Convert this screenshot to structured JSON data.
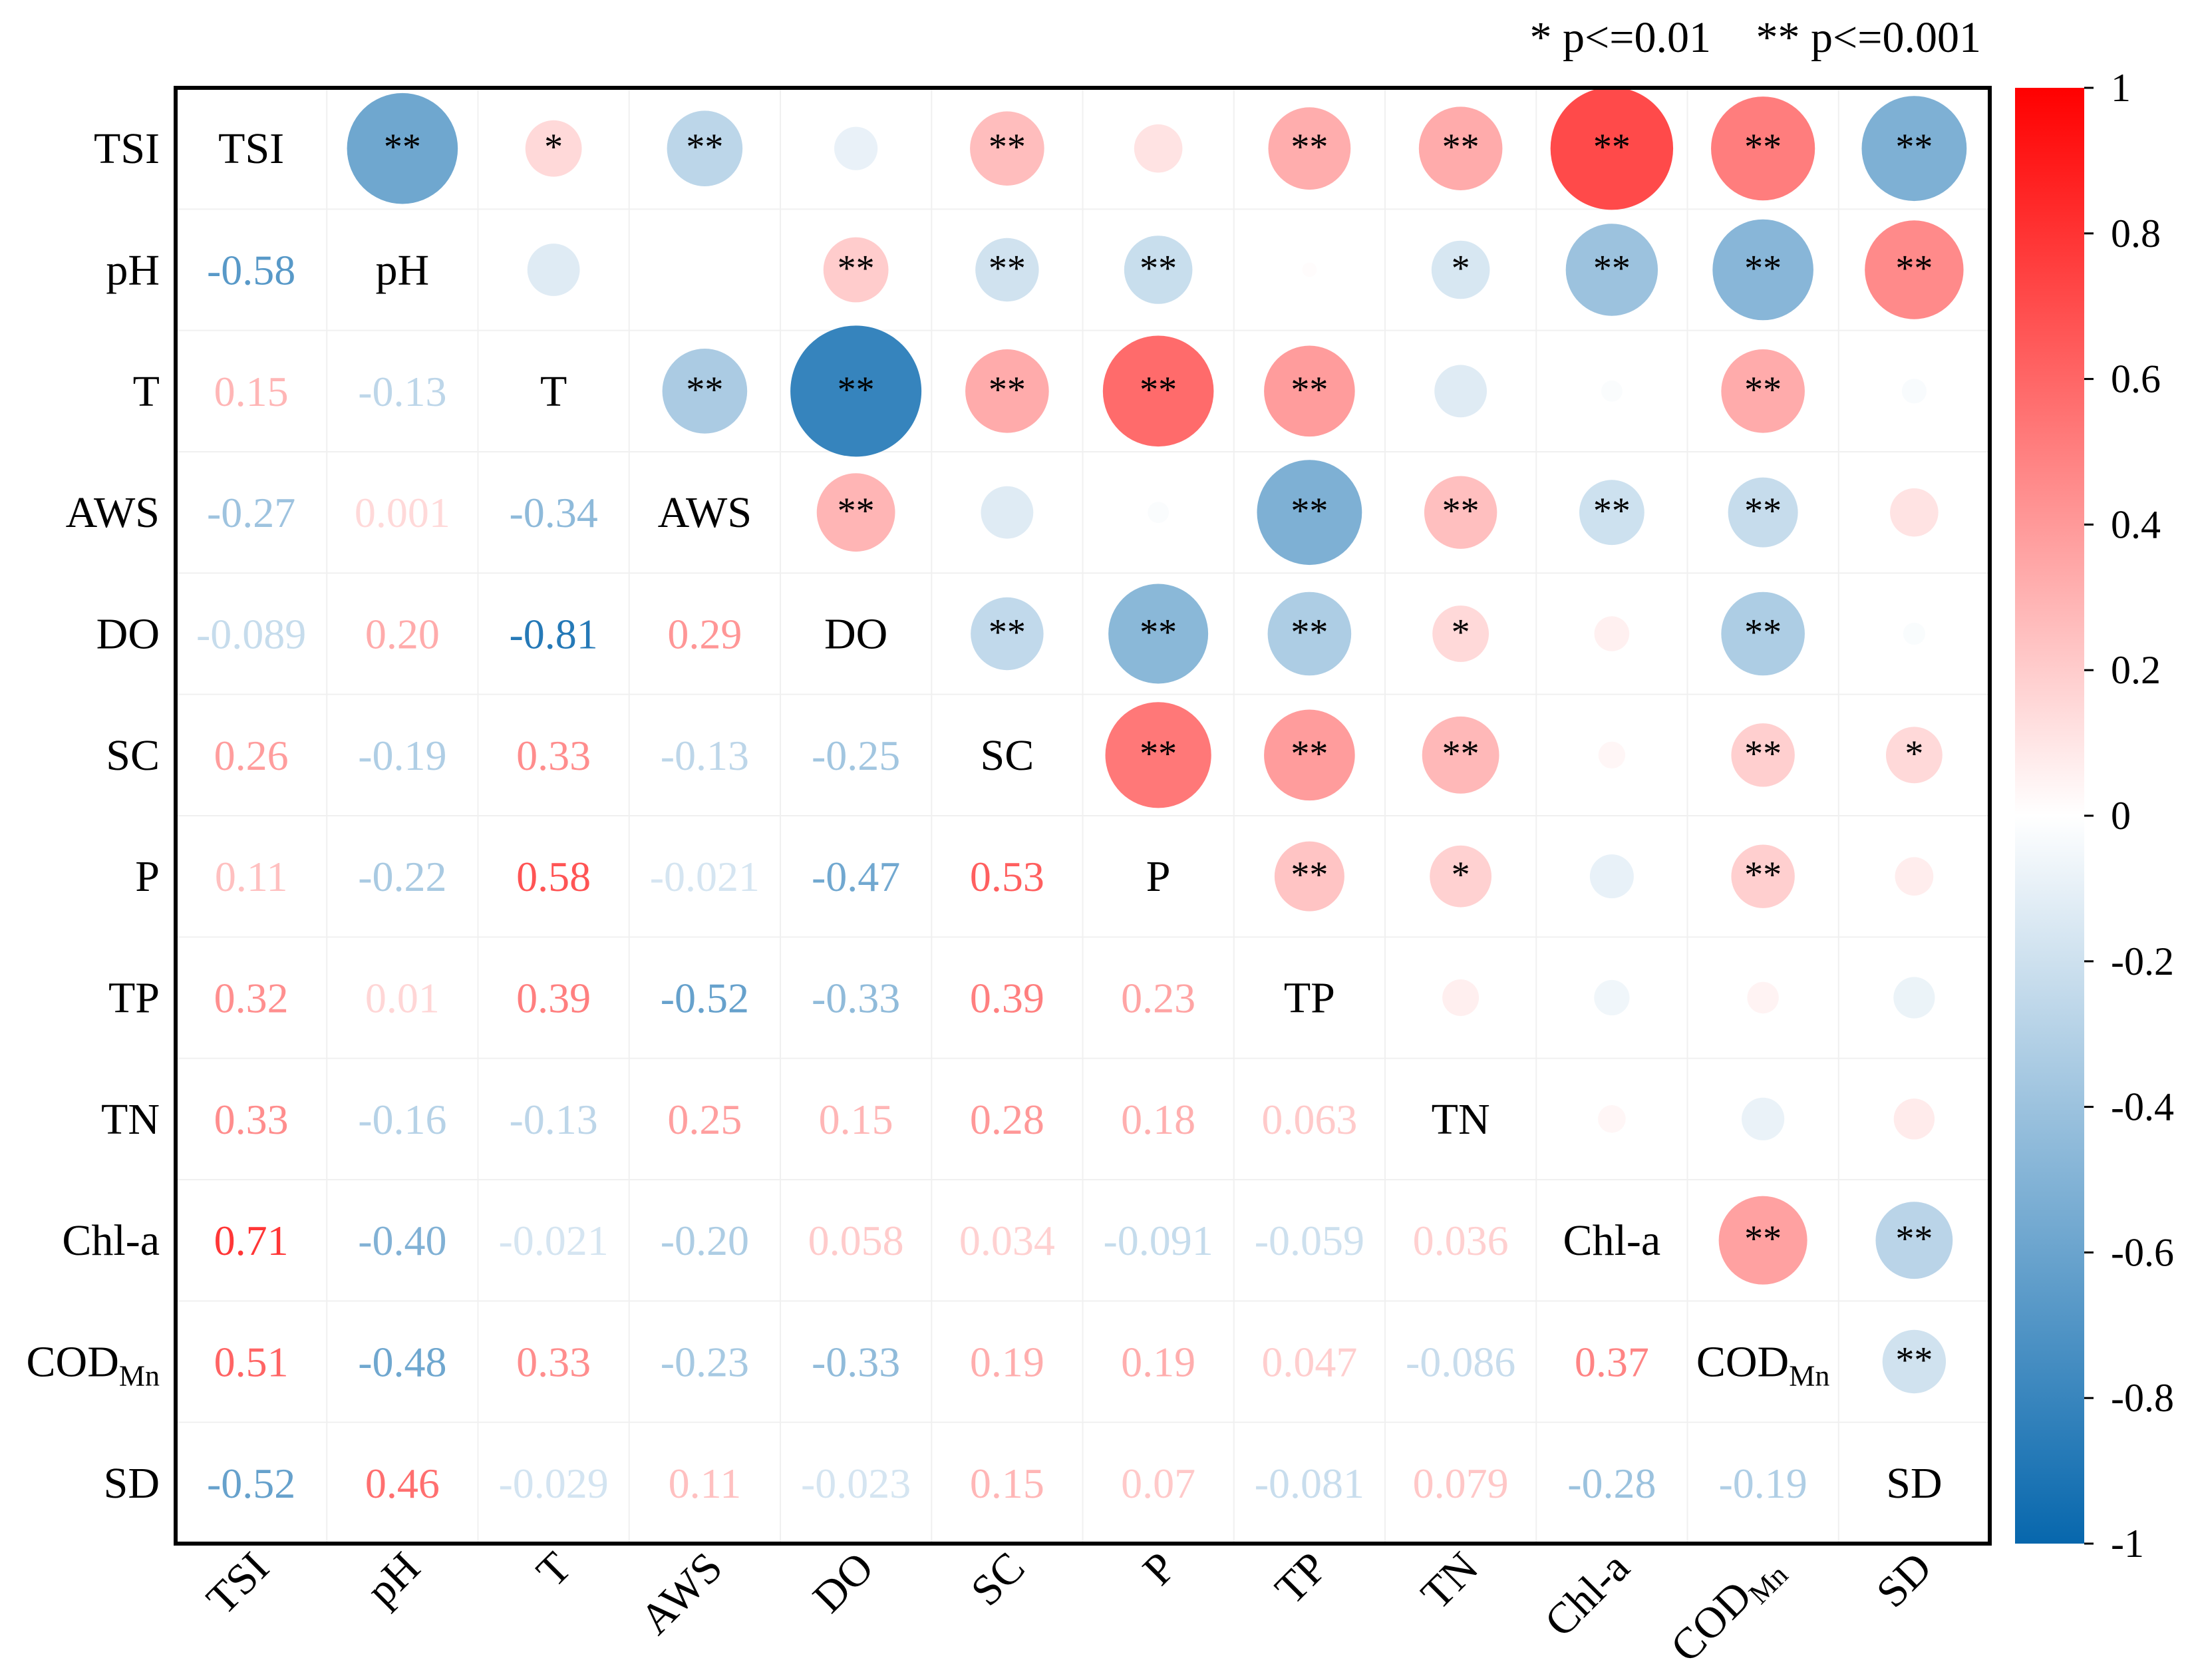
{
  "chart_data": {
    "type": "heatmap",
    "variables": [
      "TSI",
      "pH",
      "T",
      "AWS",
      "DO",
      "SC",
      "P",
      "TP",
      "TN",
      "Chl-a",
      "CODMn",
      "SD"
    ],
    "labels": [
      {
        "main": "TSI",
        "sub": ""
      },
      {
        "main": "pH",
        "sub": ""
      },
      {
        "main": "T",
        "sub": ""
      },
      {
        "main": "AWS",
        "sub": ""
      },
      {
        "main": "DO",
        "sub": ""
      },
      {
        "main": "SC",
        "sub": ""
      },
      {
        "main": "P",
        "sub": ""
      },
      {
        "main": "TP",
        "sub": ""
      },
      {
        "main": "TN",
        "sub": ""
      },
      {
        "main": "Chl-a",
        "sub": ""
      },
      {
        "main": "COD",
        "sub": "Mn"
      },
      {
        "main": "SD",
        "sub": ""
      }
    ],
    "lower_values": [
      [
        null,
        null,
        null,
        null,
        null,
        null,
        null,
        null,
        null,
        null,
        null,
        null
      ],
      [
        "-0.58",
        null,
        null,
        null,
        null,
        null,
        null,
        null,
        null,
        null,
        null,
        null
      ],
      [
        "0.15",
        "-0.13",
        null,
        null,
        null,
        null,
        null,
        null,
        null,
        null,
        null,
        null
      ],
      [
        "-0.27",
        "0.001",
        "-0.34",
        null,
        null,
        null,
        null,
        null,
        null,
        null,
        null,
        null
      ],
      [
        "-0.089",
        "0.20",
        "-0.81",
        "0.29",
        null,
        null,
        null,
        null,
        null,
        null,
        null,
        null
      ],
      [
        "0.26",
        "-0.19",
        "0.33",
        "-0.13",
        "-0.25",
        null,
        null,
        null,
        null,
        null,
        null,
        null
      ],
      [
        "0.11",
        "-0.22",
        "0.58",
        "-0.021",
        "-0.47",
        "0.53",
        null,
        null,
        null,
        null,
        null,
        null
      ],
      [
        "0.32",
        "0.01",
        "0.39",
        "-0.52",
        "-0.33",
        "0.39",
        "0.23",
        null,
        null,
        null,
        null,
        null
      ],
      [
        "0.33",
        "-0.16",
        "-0.13",
        "0.25",
        "0.15",
        "0.28",
        "0.18",
        "0.063",
        null,
        null,
        null,
        null
      ],
      [
        "0.71",
        "-0.40",
        "-0.021",
        "-0.20",
        "0.058",
        "0.034",
        "-0.091",
        "-0.059",
        "0.036",
        null,
        null,
        null
      ],
      [
        "0.51",
        "-0.48",
        "0.33",
        "-0.23",
        "-0.33",
        "0.19",
        "0.19",
        "0.047",
        "-0.086",
        "0.37",
        null,
        null
      ],
      [
        "-0.52",
        "0.46",
        "-0.029",
        "0.11",
        "-0.023",
        "0.15",
        "0.07",
        "-0.081",
        "0.079",
        "-0.28",
        "-0.19",
        null
      ]
    ],
    "upper_sig": [
      [
        "",
        "**",
        "*",
        "**",
        "",
        "**",
        "",
        "**",
        "**",
        "**",
        "**",
        "**"
      ],
      [
        "",
        "",
        "",
        "",
        "**",
        "**",
        "**",
        "",
        "*",
        "**",
        "**",
        "**"
      ],
      [
        "",
        "",
        "",
        "**",
        "**",
        "**",
        "**",
        "**",
        "",
        "",
        "**",
        ""
      ],
      [
        "",
        "",
        "",
        "",
        "**",
        "",
        "",
        "**",
        "**",
        "**",
        "**",
        ""
      ],
      [
        "",
        "",
        "",
        "",
        "",
        "**",
        "**",
        "**",
        "*",
        "",
        "**",
        ""
      ],
      [
        "",
        "",
        "",
        "",
        "",
        "",
        "**",
        "**",
        "**",
        "",
        "**",
        "*"
      ],
      [
        "",
        "",
        "",
        "",
        "",
        "",
        "",
        "**",
        "*",
        "",
        "**",
        ""
      ],
      [
        "",
        "",
        "",
        "",
        "",
        "",
        "",
        "",
        "",
        "",
        "",
        ""
      ],
      [
        "",
        "",
        "",
        "",
        "",
        "",
        "",
        "",
        "",
        "",
        "",
        ""
      ],
      [
        "",
        "",
        "",
        "",
        "",
        "",
        "",
        "",
        "",
        "",
        "**",
        "**"
      ],
      [
        "",
        "",
        "",
        "",
        "",
        "",
        "",
        "",
        "",
        "",
        "",
        "**"
      ],
      [
        "",
        "",
        "",
        "",
        "",
        "",
        "",
        "",
        "",
        "",
        "",
        ""
      ]
    ],
    "legend": {
      "single": "* p<=0.01",
      "double": "** p<=0.001"
    },
    "colorbar": {
      "min": -1,
      "max": 1,
      "ticks": [
        "1",
        "0.8",
        "0.6",
        "0.4",
        "0.2",
        "0",
        "-0.2",
        "-0.4",
        "-0.6",
        "-0.8",
        "-1"
      ],
      "tick_values": [
        1,
        0.8,
        0.6,
        0.4,
        0.2,
        0,
        -0.2,
        -0.4,
        -0.6,
        -0.8,
        -1
      ]
    },
    "colors": {
      "positive": "#ff0000",
      "negative": "#0767ad",
      "zero": "#ffffff",
      "diag_text": "#000000",
      "frame": "#000000"
    }
  }
}
